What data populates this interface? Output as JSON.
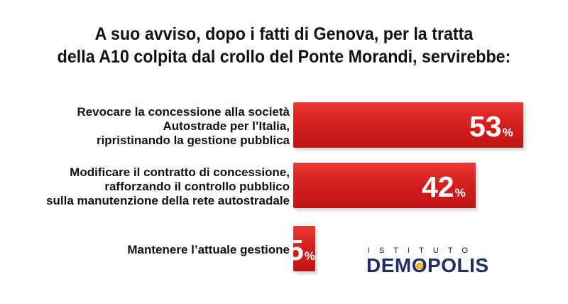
{
  "title": {
    "line1": "A suo avviso, dopo i fatti di Genova, per la tratta",
    "line2": "della A10 colpita dal crollo del Ponte Morandi, servirebbe:"
  },
  "chart_data": {
    "type": "bar",
    "orientation": "horizontal",
    "categories": [
      [
        "Revocare la concessione alla società",
        "Autostrade per l’Italia,",
        "ripristinando la gestione pubblica"
      ],
      [
        "Modificare il contratto di concessione,",
        "rafforzando il controllo pubblico",
        "sulla manutenzione della rete autostradale"
      ],
      [
        "Mantenere l’attuale gestione"
      ]
    ],
    "values": [
      53,
      42,
      5
    ],
    "value_labels": [
      "53",
      "42",
      "5"
    ],
    "unit": "%",
    "bar_color": "#d42020",
    "xlim": [
      0,
      53
    ]
  },
  "logo": {
    "small": "ISTITUTO",
    "main_before": "DEM",
    "main_o": "O",
    "main_after": "POLIS",
    "colors": {
      "main": "#1f2f63",
      "dot": "#f0a21b"
    }
  }
}
